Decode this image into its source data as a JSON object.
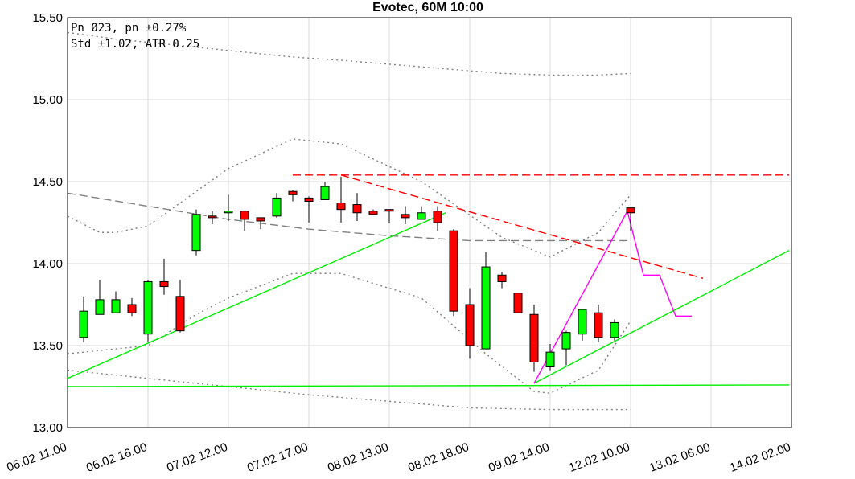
{
  "chart_data": {
    "type": "candlestick",
    "title": "Evotec, 60M 10:00",
    "info_lines": [
      "Pn  Ø23, pn ±0.27%",
      "Std ±1.02, ATR 0.25"
    ],
    "x": [
      1,
      2,
      3,
      4,
      5,
      6,
      7,
      8,
      9,
      10,
      11,
      12,
      13,
      14,
      15,
      16,
      17,
      18,
      19,
      20,
      21,
      22,
      23,
      24,
      25,
      26,
      27,
      28,
      29,
      30,
      31,
      32,
      33,
      34,
      35
    ],
    "open": [
      13.55,
      13.69,
      13.7,
      13.75,
      13.57,
      13.89,
      13.8,
      14.08,
      14.29,
      14.31,
      14.32,
      14.28,
      14.29,
      14.44,
      14.4,
      14.39,
      14.37,
      14.36,
      14.32,
      14.33,
      14.3,
      14.27,
      14.32,
      14.2,
      13.75,
      13.48,
      13.93,
      13.82,
      13.69,
      13.37,
      13.48,
      13.57,
      13.7,
      13.55,
      14.34
    ],
    "high": [
      13.8,
      13.9,
      13.83,
      13.79,
      13.9,
      14.03,
      13.9,
      14.33,
      14.32,
      14.42,
      14.32,
      14.28,
      14.43,
      14.45,
      14.41,
      14.5,
      14.53,
      14.43,
      14.33,
      14.33,
      14.35,
      14.35,
      14.35,
      14.21,
      13.85,
      14.07,
      13.95,
      13.82,
      13.75,
      13.51,
      13.59,
      13.72,
      13.75,
      13.66,
      14.34
    ],
    "low": [
      13.52,
      13.69,
      13.7,
      13.68,
      13.52,
      13.81,
      13.58,
      14.05,
      14.24,
      14.26,
      14.2,
      14.21,
      14.28,
      14.38,
      14.25,
      14.39,
      14.25,
      14.26,
      14.3,
      14.25,
      14.24,
      14.27,
      14.2,
      13.68,
      13.42,
      13.48,
      13.85,
      13.7,
      13.34,
      13.35,
      13.38,
      13.53,
      13.52,
      13.53,
      14.2
    ],
    "close": [
      13.71,
      13.78,
      13.78,
      13.7,
      13.89,
      13.86,
      13.59,
      14.3,
      14.28,
      14.32,
      14.27,
      14.26,
      14.4,
      14.42,
      14.38,
      14.47,
      14.33,
      14.31,
      14.3,
      14.32,
      14.28,
      14.31,
      14.25,
      13.71,
      13.5,
      13.98,
      13.89,
      13.7,
      13.4,
      13.46,
      13.58,
      13.72,
      13.55,
      13.64,
      14.31
    ],
    "up_color": "#00ff00",
    "down_color": "#ff0000",
    "xlim": [
      0,
      45
    ],
    "ylim": [
      13,
      15.5
    ],
    "xticks": [
      {
        "value": 0,
        "label": "06.02 11.00"
      },
      {
        "value": 5,
        "label": "06.02 16.00"
      },
      {
        "value": 10,
        "label": "07.02 12.00"
      },
      {
        "value": 15,
        "label": "07.02 17.00"
      },
      {
        "value": 20,
        "label": "08.02 13.00"
      },
      {
        "value": 25,
        "label": "08.02 18.00"
      },
      {
        "value": 30,
        "label": "09.02 14.00"
      },
      {
        "value": 35,
        "label": "12.02 10.00"
      },
      {
        "value": 40,
        "label": "13.02 06.00"
      },
      {
        "value": 45,
        "label": "14.02 02.00"
      }
    ],
    "yticks": [
      {
        "value": 13,
        "label": "13.00"
      },
      {
        "value": 13.5,
        "label": "13.50"
      },
      {
        "value": 14,
        "label": "14.00"
      },
      {
        "value": 14.5,
        "label": "14.50"
      },
      {
        "value": 15,
        "label": "15.00"
      },
      {
        "value": 15.5,
        "label": "15.50"
      }
    ],
    "grid": true,
    "overlays": [
      {
        "color": "#808080",
        "dash": "2 4",
        "x": [
          0,
          3,
          5,
          10,
          14,
          17,
          22,
          27,
          30,
          33,
          35
        ],
        "y": [
          15.41,
          15.37,
          15.35,
          15.3,
          15.26,
          15.24,
          15.2,
          15.16,
          15.15,
          15.15,
          15.16
        ]
      },
      {
        "color": "#808080",
        "dash": "2 4",
        "x": [
          0,
          2,
          3,
          5,
          8,
          10,
          14,
          17,
          22,
          27,
          30,
          33,
          35
        ],
        "y": [
          14.29,
          14.19,
          14.19,
          14.23,
          14.44,
          14.58,
          14.76,
          14.73,
          14.5,
          14.16,
          14.04,
          14.19,
          14.42
        ]
      },
      {
        "color": "#808080",
        "dash": "2 4",
        "x": [
          0,
          5,
          8,
          10,
          14,
          17,
          22,
          26,
          29,
          30,
          33,
          35
        ],
        "y": [
          13.45,
          13.5,
          13.69,
          13.79,
          13.94,
          13.94,
          13.79,
          13.45,
          13.22,
          13.21,
          13.35,
          13.65
        ]
      },
      {
        "color": "#808080",
        "dash": "2 4",
        "x": [
          0,
          5,
          10,
          15,
          20,
          25,
          30,
          35
        ],
        "y": [
          13.35,
          13.3,
          13.25,
          13.2,
          13.16,
          13.12,
          13.11,
          13.11
        ]
      },
      {
        "color": "#808080",
        "dash": "10 5",
        "x": [
          0,
          5,
          10,
          15,
          20,
          25,
          30,
          35
        ],
        "y": [
          14.43,
          14.35,
          14.27,
          14.21,
          14.17,
          14.14,
          14.14,
          14.14
        ]
      },
      {
        "color": "#ff0000",
        "dash": "10 5",
        "x": [
          14,
          44.85
        ],
        "y": [
          14.54,
          14.54
        ]
      },
      {
        "color": "#ff0000",
        "dash": "10 5",
        "x": [
          17,
          39.5
        ],
        "y": [
          14.54,
          13.91
        ]
      },
      {
        "color": "#00ee00",
        "dash": "",
        "x": [
          0,
          44.85
        ],
        "y": [
          13.25,
          13.26
        ]
      },
      {
        "color": "#00ee00",
        "dash": "",
        "x": [
          0,
          23.5
        ],
        "y": [
          13.3,
          14.31
        ]
      },
      {
        "color": "#00ee00",
        "dash": "",
        "x": [
          29,
          44.85
        ],
        "y": [
          13.27,
          14.08
        ]
      },
      {
        "color": "#ff00ff",
        "dash": "",
        "x": [
          29,
          34.8,
          35.8,
          36.8,
          37.8,
          38.8
        ],
        "y": [
          13.27,
          14.32,
          13.93,
          13.93,
          13.68,
          13.68
        ]
      }
    ]
  }
}
